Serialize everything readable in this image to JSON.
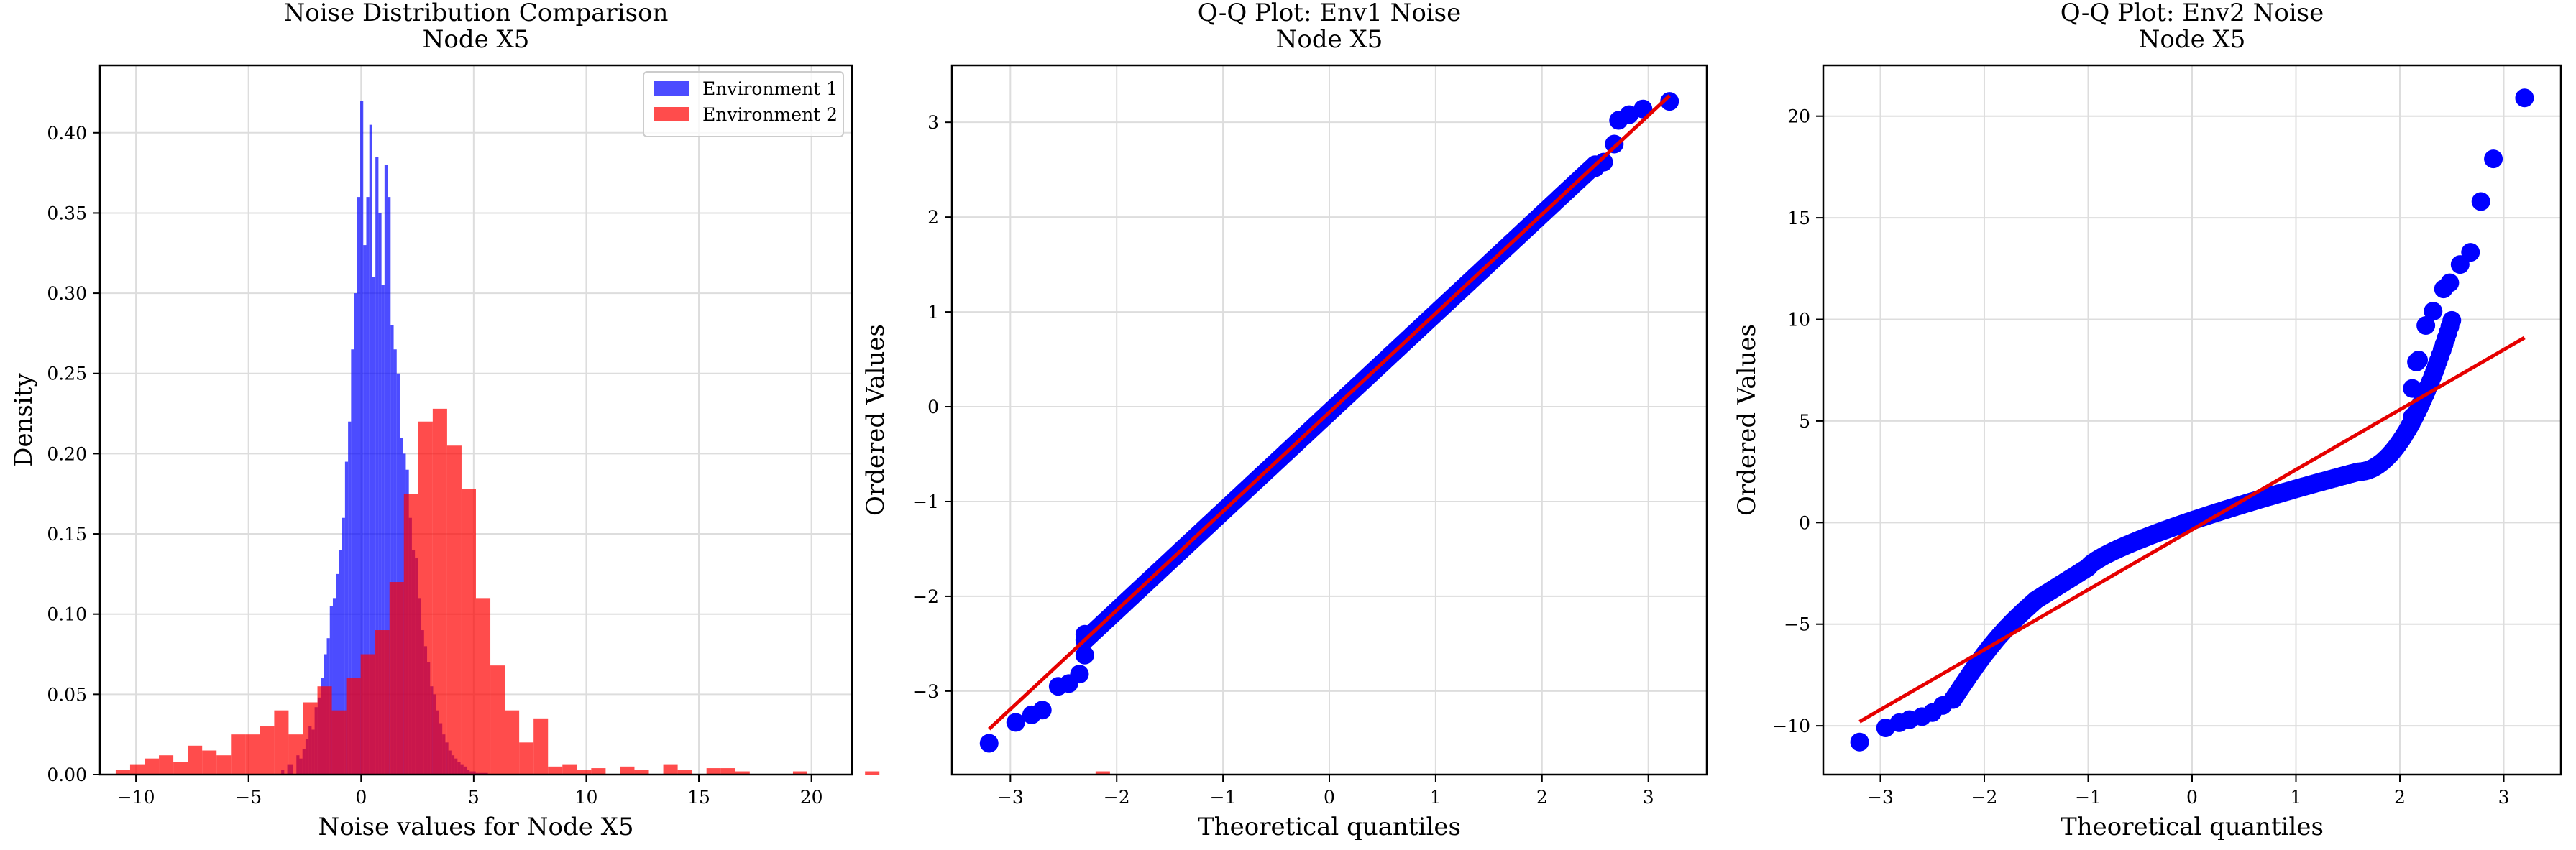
{
  "figure": {
    "background": "#ffffff",
    "grid_color": "#dddddd",
    "axes_color": "#000000"
  },
  "chart_data": [
    {
      "type": "histogram",
      "title": "Noise Distribution Comparison\nNode X5",
      "title_lines": [
        "Noise Distribution Comparison",
        "Node X5"
      ],
      "xlabel": "Noise values for Node X5",
      "ylabel": "Density",
      "xlim": [
        -11.6,
        21.8
      ],
      "ylim": [
        0,
        0.442
      ],
      "xticks": [
        -10,
        -5,
        0,
        5,
        10,
        15,
        20
      ],
      "yticks": [
        0.0,
        0.05,
        0.1,
        0.15,
        0.2,
        0.25,
        0.3,
        0.35,
        0.4
      ],
      "ytick_labels": [
        "0.00",
        "0.05",
        "0.10",
        "0.15",
        "0.20",
        "0.25",
        "0.30",
        "0.35",
        "0.40"
      ],
      "grid": true,
      "legend_position": "top-right",
      "series": [
        {
          "name": "Environment 1",
          "color": "#0000ff",
          "alpha": 0.7,
          "bins_start": -3.55,
          "bin_width": 0.135,
          "densities": [
            0.003,
            0.0,
            0.006,
            0.006,
            0.0,
            0.012,
            0.01,
            0.016,
            0.022,
            0.03,
            0.028,
            0.042,
            0.048,
            0.06,
            0.075,
            0.085,
            0.105,
            0.11,
            0.125,
            0.14,
            0.16,
            0.195,
            0.22,
            0.265,
            0.3,
            0.36,
            0.42,
            0.33,
            0.36,
            0.405,
            0.31,
            0.385,
            0.35,
            0.305,
            0.38,
            0.36,
            0.28,
            0.265,
            0.25,
            0.21,
            0.2,
            0.19,
            0.16,
            0.14,
            0.135,
            0.11,
            0.09,
            0.08,
            0.07,
            0.055,
            0.05,
            0.04,
            0.032,
            0.025,
            0.02,
            0.015,
            0.012,
            0.01,
            0.008,
            0.006,
            0.005,
            0.003,
            0.002,
            0.002,
            0.001,
            0.001,
            0.001,
            0.001
          ]
        },
        {
          "name": "Environment 2",
          "color": "#ff0000",
          "alpha": 0.7,
          "bins_start": -10.9,
          "bin_width": 0.64,
          "densities": [
            0.003,
            0.006,
            0.01,
            0.012,
            0.008,
            0.018,
            0.015,
            0.012,
            0.025,
            0.025,
            0.03,
            0.04,
            0.025,
            0.045,
            0.055,
            0.04,
            0.06,
            0.075,
            0.09,
            0.12,
            0.175,
            0.22,
            0.228,
            0.205,
            0.178,
            0.11,
            0.068,
            0.04,
            0.02,
            0.035,
            0.005,
            0.006,
            0.003,
            0.004,
            0.0,
            0.005,
            0.003,
            0.0,
            0.006,
            0.003,
            0.0,
            0.004,
            0.004,
            0.002,
            0.0,
            0.0,
            0.0,
            0.002,
            0.0,
            0.0,
            0.0,
            0.0,
            0.002,
            0.0,
            0.0,
            0.0,
            0.0,
            0.0,
            0.0,
            0.0,
            0.0,
            0.0,
            0.0,
            0.0,
            0.0,
            0.0,
            0.0,
            0.0,
            0.002,
            0.0
          ]
        }
      ]
    },
    {
      "type": "scatter",
      "title": "Q-Q Plot: Env1 Noise\nNode X5",
      "title_lines": [
        "Q-Q Plot: Env1 Noise",
        "Node X5"
      ],
      "xlabel": "Theoretical quantiles",
      "ylabel": "Ordered Values",
      "xlim": [
        -3.55,
        3.55
      ],
      "ylim": [
        -3.88,
        3.6
      ],
      "xticks": [
        -3,
        -2,
        -1,
        0,
        1,
        2,
        3
      ],
      "yticks": [
        -3,
        -2,
        -1,
        0,
        1,
        2,
        3
      ],
      "grid": true,
      "point_color": "#0000ff",
      "line_color": "#e60000",
      "fit_line": {
        "x": [
          -3.2,
          3.2
        ],
        "y": [
          -3.4,
          3.28
        ]
      },
      "outliers": [
        {
          "x": -3.2,
          "y": -3.55
        },
        {
          "x": -2.95,
          "y": -3.33
        },
        {
          "x": -2.8,
          "y": -3.25
        },
        {
          "x": -2.7,
          "y": -3.2
        },
        {
          "x": -2.55,
          "y": -2.95
        },
        {
          "x": -2.45,
          "y": -2.92
        },
        {
          "x": -2.35,
          "y": -2.82
        },
        {
          "x": -2.3,
          "y": -2.62
        },
        {
          "x": -2.3,
          "y": -2.4
        },
        {
          "x": 2.5,
          "y": 2.52
        },
        {
          "x": 2.58,
          "y": 2.58
        },
        {
          "x": 2.68,
          "y": 2.77
        },
        {
          "x": 2.72,
          "y": 3.02
        },
        {
          "x": 2.82,
          "y": 3.08
        },
        {
          "x": 2.95,
          "y": 3.14
        },
        {
          "x": 3.2,
          "y": 3.22
        }
      ]
    },
    {
      "type": "scatter",
      "title": "Q-Q Plot: Env2 Noise\nNode X5",
      "title_lines": [
        "Q-Q Plot: Env2 Noise",
        "Node X5"
      ],
      "xlabel": "Theoretical quantiles",
      "ylabel": "Ordered Values",
      "xlim": [
        -3.55,
        3.55
      ],
      "ylim": [
        -12.4,
        22.5
      ],
      "xticks": [
        -3,
        -2,
        -1,
        0,
        1,
        2,
        3
      ],
      "yticks": [
        -10,
        -5,
        0,
        5,
        10,
        15,
        20
      ],
      "grid": true,
      "point_color": "#0000ff",
      "line_color": "#e60000",
      "fit_line": {
        "x": [
          -3.2,
          3.2
        ],
        "y": [
          -9.8,
          9.1
        ]
      },
      "outliers": [
        {
          "x": -3.2,
          "y": -10.8
        },
        {
          "x": -2.95,
          "y": -10.1
        },
        {
          "x": -2.82,
          "y": -9.85
        },
        {
          "x": -2.72,
          "y": -9.7
        },
        {
          "x": -2.6,
          "y": -9.55
        },
        {
          "x": -2.5,
          "y": -9.35
        },
        {
          "x": -2.4,
          "y": -9.0
        },
        {
          "x": -2.3,
          "y": -8.7
        },
        {
          "x": 2.1,
          "y": 4.8
        },
        {
          "x": 2.12,
          "y": 5.2
        },
        {
          "x": 2.12,
          "y": 6.6
        },
        {
          "x": 2.16,
          "y": 7.9
        },
        {
          "x": 2.18,
          "y": 8.0
        },
        {
          "x": 2.25,
          "y": 9.7
        },
        {
          "x": 2.32,
          "y": 10.4
        },
        {
          "x": 2.42,
          "y": 11.5
        },
        {
          "x": 2.48,
          "y": 11.8
        },
        {
          "x": 2.58,
          "y": 12.7
        },
        {
          "x": 2.68,
          "y": 13.3
        },
        {
          "x": 2.78,
          "y": 15.8
        },
        {
          "x": 2.9,
          "y": 17.9
        },
        {
          "x": 3.2,
          "y": 20.9
        }
      ]
    }
  ]
}
